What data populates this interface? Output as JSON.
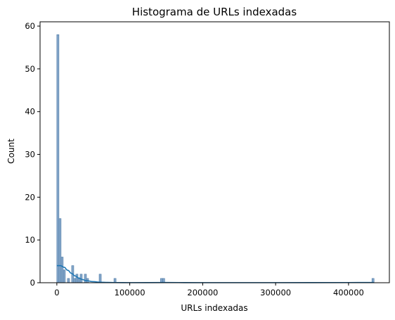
{
  "chart_data": {
    "type": "bar",
    "subtype": "histogram-with-kde",
    "title": "Histograma de URLs indexadas",
    "xlabel": "URLs indexadas",
    "ylabel": "Count",
    "xlim": [
      -23000,
      456000
    ],
    "ylim": [
      0,
      61
    ],
    "x_ticks": [
      0,
      100000,
      200000,
      300000,
      400000
    ],
    "y_ticks": [
      0,
      10,
      20,
      30,
      40,
      50,
      60
    ],
    "grid": false,
    "legend": "none",
    "bin_width": 2900,
    "bins": [
      {
        "x": 0,
        "count": 58
      },
      {
        "x": 2900,
        "count": 15
      },
      {
        "x": 5800,
        "count": 6
      },
      {
        "x": 8700,
        "count": 3
      },
      {
        "x": 14500,
        "count": 1
      },
      {
        "x": 20300,
        "count": 4
      },
      {
        "x": 23200,
        "count": 1
      },
      {
        "x": 26100,
        "count": 2
      },
      {
        "x": 29000,
        "count": 1
      },
      {
        "x": 31900,
        "count": 2
      },
      {
        "x": 37700,
        "count": 2
      },
      {
        "x": 40600,
        "count": 1
      },
      {
        "x": 58000,
        "count": 2
      },
      {
        "x": 78300,
        "count": 1
      },
      {
        "x": 142100,
        "count": 1
      },
      {
        "x": 145000,
        "count": 1
      },
      {
        "x": 432100,
        "count": 1
      }
    ],
    "kde": {
      "x": [
        0,
        5000,
        10000,
        15000,
        20000,
        25000,
        30000,
        35000,
        40000,
        50000,
        60000,
        70000,
        80000,
        100000,
        150000,
        200000,
        300000,
        400000,
        435000
      ],
      "y": [
        4.0,
        4.0,
        3.6,
        2.9,
        2.2,
        1.6,
        1.1,
        0.75,
        0.5,
        0.25,
        0.12,
        0.07,
        0.04,
        0.02,
        0.05,
        0.02,
        0.02,
        0.04,
        0.05
      ]
    },
    "colors": {
      "bar_fill": "#6f97bf",
      "bar_edge": "#4c79a6",
      "kde_line": "#1f77b4",
      "axis": "#000000"
    }
  }
}
